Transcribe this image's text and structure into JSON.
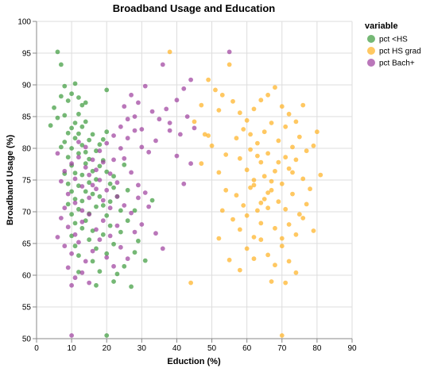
{
  "chart_data": {
    "type": "scatter",
    "title": "Broadband Usage and Education",
    "xlabel": "Eduction (%)",
    "ylabel": "Broadband Usage (%)",
    "xlim": [
      0,
      90
    ],
    "ylim": [
      50,
      100
    ],
    "x_ticks": [
      0,
      10,
      20,
      30,
      40,
      50,
      60,
      70,
      80,
      90
    ],
    "y_ticks": [
      50,
      55,
      60,
      65,
      70,
      75,
      80,
      85,
      90,
      95,
      100
    ],
    "grid": true,
    "legend": {
      "title": "variable",
      "placement": "right"
    },
    "series": [
      {
        "name": "pct <HS",
        "color": "#3a9a3a",
        "points": [
          [
            6,
            95.2
          ],
          [
            7,
            93.2
          ],
          [
            5,
            86.4
          ],
          [
            6,
            84.8
          ],
          [
            7,
            88.2
          ],
          [
            8,
            89.8
          ],
          [
            8,
            85.2
          ],
          [
            9,
            87.5
          ],
          [
            10,
            88.6
          ],
          [
            11,
            90.2
          ],
          [
            12,
            88.0
          ],
          [
            12,
            85.4
          ],
          [
            11,
            84.0
          ],
          [
            13,
            86.8
          ],
          [
            10,
            83.2
          ],
          [
            9,
            82.4
          ],
          [
            8,
            81.0
          ],
          [
            7,
            80.2
          ],
          [
            10,
            80.0
          ],
          [
            11,
            81.6
          ],
          [
            12,
            82.3
          ],
          [
            13,
            83.4
          ],
          [
            14,
            84.2
          ],
          [
            9,
            78.6
          ],
          [
            10,
            77.3
          ],
          [
            11,
            76.1
          ],
          [
            12,
            79.2
          ],
          [
            13,
            80.5
          ],
          [
            14,
            79.4
          ],
          [
            15,
            81.3
          ],
          [
            16,
            82.2
          ],
          [
            8,
            76.0
          ],
          [
            9,
            74.4
          ],
          [
            10,
            73.2
          ],
          [
            11,
            72.0
          ],
          [
            12,
            74.1
          ],
          [
            13,
            75.8
          ],
          [
            14,
            77.6
          ],
          [
            15,
            78.3
          ],
          [
            16,
            76.4
          ],
          [
            17,
            79.6
          ],
          [
            18,
            80.6
          ],
          [
            19,
            81.4
          ],
          [
            20,
            82.6
          ],
          [
            9,
            71.2
          ],
          [
            10,
            69.6
          ],
          [
            11,
            68.2
          ],
          [
            12,
            70.4
          ],
          [
            13,
            71.7
          ],
          [
            14,
            73.2
          ],
          [
            15,
            74.6
          ],
          [
            16,
            72.8
          ],
          [
            17,
            75.1
          ],
          [
            18,
            77.2
          ],
          [
            19,
            78.1
          ],
          [
            20,
            76.3
          ],
          [
            21,
            74.4
          ],
          [
            22,
            75.6
          ],
          [
            10,
            66.2
          ],
          [
            11,
            64.6
          ],
          [
            12,
            63.1
          ],
          [
            13,
            67.4
          ],
          [
            14,
            68.6
          ],
          [
            15,
            69.7
          ],
          [
            16,
            67.0
          ],
          [
            17,
            70.8
          ],
          [
            18,
            72.4
          ],
          [
            19,
            71.0
          ],
          [
            20,
            69.4
          ],
          [
            21,
            71.6
          ],
          [
            22,
            73.8
          ],
          [
            23,
            72.4
          ],
          [
            24,
            70.2
          ],
          [
            15,
            65.6
          ],
          [
            16,
            62.2
          ],
          [
            17,
            64.2
          ],
          [
            18,
            60.6
          ],
          [
            19,
            66.4
          ],
          [
            20,
            63.4
          ],
          [
            21,
            67.8
          ],
          [
            22,
            64.9
          ],
          [
            24,
            66.8
          ],
          [
            26,
            68.6
          ],
          [
            28,
            63.6
          ],
          [
            25,
            61.4
          ],
          [
            23,
            60.2
          ],
          [
            27,
            58.2
          ],
          [
            29,
            65.4
          ],
          [
            31,
            62.3
          ],
          [
            33,
            71.8
          ],
          [
            26,
            73.4
          ],
          [
            28,
            70.2
          ],
          [
            25,
            77.4
          ],
          [
            20,
            89.2
          ],
          [
            14,
            87.2
          ],
          [
            4,
            83.6
          ],
          [
            20,
            50.5
          ],
          [
            12,
            60.5
          ],
          [
            17,
            58.4
          ],
          [
            22,
            59.0
          ]
        ]
      },
      {
        "name": "pct HS grad",
        "color": "#ffb020",
        "points": [
          [
            38,
            95.2
          ],
          [
            55,
            93.2
          ],
          [
            49,
            90.8
          ],
          [
            51,
            89.2
          ],
          [
            53,
            88.4
          ],
          [
            47,
            86.8
          ],
          [
            56,
            87.4
          ],
          [
            58,
            85.6
          ],
          [
            60,
            84.4
          ],
          [
            62,
            86.2
          ],
          [
            64,
            87.6
          ],
          [
            66,
            88.4
          ],
          [
            68,
            89.6
          ],
          [
            70,
            86.6
          ],
          [
            72,
            85.4
          ],
          [
            74,
            84.2
          ],
          [
            76,
            86.8
          ],
          [
            48,
            82.2
          ],
          [
            50,
            80.4
          ],
          [
            57,
            81.6
          ],
          [
            59,
            83.0
          ],
          [
            61,
            82.2
          ],
          [
            63,
            80.8
          ],
          [
            65,
            82.6
          ],
          [
            67,
            84.0
          ],
          [
            69,
            81.2
          ],
          [
            71,
            83.4
          ],
          [
            73,
            80.2
          ],
          [
            75,
            81.8
          ],
          [
            77,
            79.6
          ],
          [
            79,
            80.4
          ],
          [
            58,
            78.4
          ],
          [
            60,
            76.6
          ],
          [
            62,
            75.0
          ],
          [
            64,
            77.8
          ],
          [
            66,
            79.2
          ],
          [
            68,
            76.4
          ],
          [
            70,
            74.4
          ],
          [
            72,
            76.8
          ],
          [
            74,
            78.2
          ],
          [
            76,
            75.2
          ],
          [
            78,
            73.6
          ],
          [
            81,
            75.8
          ],
          [
            57,
            72.6
          ],
          [
            59,
            71.0
          ],
          [
            61,
            73.8
          ],
          [
            63,
            70.2
          ],
          [
            65,
            72.0
          ],
          [
            67,
            73.4
          ],
          [
            69,
            71.6
          ],
          [
            71,
            70.4
          ],
          [
            73,
            72.8
          ],
          [
            75,
            69.6
          ],
          [
            77,
            71.2
          ],
          [
            56,
            68.8
          ],
          [
            58,
            67.2
          ],
          [
            60,
            69.4
          ],
          [
            62,
            66.0
          ],
          [
            64,
            68.2
          ],
          [
            66,
            70.6
          ],
          [
            68,
            67.4
          ],
          [
            70,
            65.8
          ],
          [
            72,
            68.0
          ],
          [
            74,
            66.4
          ],
          [
            76,
            69.0
          ],
          [
            79,
            67.0
          ],
          [
            60,
            64.2
          ],
          [
            62,
            62.6
          ],
          [
            64,
            65.6
          ],
          [
            66,
            63.2
          ],
          [
            68,
            61.6
          ],
          [
            70,
            64.6
          ],
          [
            72,
            62.2
          ],
          [
            74,
            60.4
          ],
          [
            58,
            60.8
          ],
          [
            67,
            59.0
          ],
          [
            71,
            58.8
          ],
          [
            55,
            62.4
          ],
          [
            52,
            65.8
          ],
          [
            53,
            70.2
          ],
          [
            54,
            73.4
          ],
          [
            52,
            76.2
          ],
          [
            54,
            79.0
          ],
          [
            47,
            77.6
          ],
          [
            49,
            82.0
          ],
          [
            45,
            84.2
          ],
          [
            52,
            86.0
          ],
          [
            44,
            58.8
          ],
          [
            70,
            50.5
          ],
          [
            80,
            82.6
          ],
          [
            63,
            78.8
          ],
          [
            65,
            75.6
          ],
          [
            61,
            79.8
          ],
          [
            69,
            77.8
          ],
          [
            67,
            74.8
          ],
          [
            73,
            76.2
          ],
          [
            71,
            78.6
          ],
          [
            66,
            73.0
          ],
          [
            64,
            71.4
          ],
          [
            62,
            74.2
          ]
        ]
      },
      {
        "name": "pct Bach+",
        "color": "#9c3d9c",
        "points": [
          [
            55,
            95.2
          ],
          [
            36,
            93.2
          ],
          [
            44,
            90.8
          ],
          [
            42,
            89.4
          ],
          [
            31,
            89.8
          ],
          [
            27,
            88.4
          ],
          [
            25,
            86.6
          ],
          [
            29,
            87.2
          ],
          [
            33,
            85.8
          ],
          [
            35,
            84.6
          ],
          [
            37,
            86.2
          ],
          [
            40,
            87.6
          ],
          [
            43,
            85.0
          ],
          [
            45,
            83.2
          ],
          [
            41,
            82.2
          ],
          [
            38,
            84.0
          ],
          [
            24,
            83.4
          ],
          [
            22,
            82.0
          ],
          [
            20,
            80.8
          ],
          [
            26,
            81.6
          ],
          [
            28,
            82.8
          ],
          [
            30,
            80.2
          ],
          [
            32,
            79.4
          ],
          [
            18,
            79.6
          ],
          [
            16,
            78.2
          ],
          [
            14,
            77.0
          ],
          [
            12,
            78.6
          ],
          [
            10,
            77.6
          ],
          [
            8,
            76.4
          ],
          [
            11,
            75.2
          ],
          [
            13,
            74.0
          ],
          [
            15,
            75.8
          ],
          [
            17,
            76.6
          ],
          [
            19,
            77.8
          ],
          [
            21,
            76.0
          ],
          [
            23,
            74.6
          ],
          [
            25,
            78.4
          ],
          [
            27,
            76.2
          ],
          [
            29,
            74.2
          ],
          [
            31,
            73.0
          ],
          [
            9,
            72.8
          ],
          [
            11,
            71.4
          ],
          [
            13,
            70.2
          ],
          [
            15,
            72.2
          ],
          [
            17,
            73.6
          ],
          [
            19,
            71.8
          ],
          [
            21,
            70.6
          ],
          [
            23,
            72.4
          ],
          [
            25,
            71.0
          ],
          [
            27,
            69.8
          ],
          [
            29,
            72.2
          ],
          [
            7,
            69.0
          ],
          [
            9,
            67.6
          ],
          [
            11,
            66.4
          ],
          [
            13,
            68.4
          ],
          [
            15,
            69.6
          ],
          [
            17,
            67.2
          ],
          [
            19,
            68.6
          ],
          [
            21,
            66.2
          ],
          [
            23,
            67.8
          ],
          [
            6,
            66.0
          ],
          [
            8,
            64.6
          ],
          [
            10,
            63.4
          ],
          [
            12,
            65.2
          ],
          [
            14,
            62.2
          ],
          [
            16,
            63.8
          ],
          [
            18,
            65.6
          ],
          [
            20,
            62.8
          ],
          [
            22,
            61.4
          ],
          [
            9,
            61.2
          ],
          [
            11,
            59.6
          ],
          [
            10,
            58.4
          ],
          [
            13,
            60.4
          ],
          [
            15,
            58.8
          ],
          [
            24,
            64.4
          ],
          [
            26,
            62.6
          ],
          [
            28,
            66.8
          ],
          [
            30,
            68.0
          ],
          [
            32,
            70.8
          ],
          [
            34,
            66.6
          ],
          [
            36,
            64.2
          ],
          [
            38,
            82.8
          ],
          [
            34,
            81.2
          ],
          [
            44,
            77.6
          ],
          [
            40,
            78.8
          ],
          [
            42,
            74.4
          ],
          [
            10,
            50.5
          ],
          [
            6,
            79.2
          ],
          [
            7,
            74.8
          ],
          [
            12,
            81.0
          ],
          [
            14,
            80.2
          ],
          [
            16,
            74.2
          ],
          [
            18,
            75.0
          ],
          [
            20,
            73.4
          ],
          [
            22,
            78.2
          ],
          [
            24,
            80.0
          ],
          [
            26,
            84.6
          ],
          [
            28,
            85.0
          ],
          [
            30,
            83.0
          ],
          [
            8,
            70.6
          ]
        ]
      }
    ]
  }
}
